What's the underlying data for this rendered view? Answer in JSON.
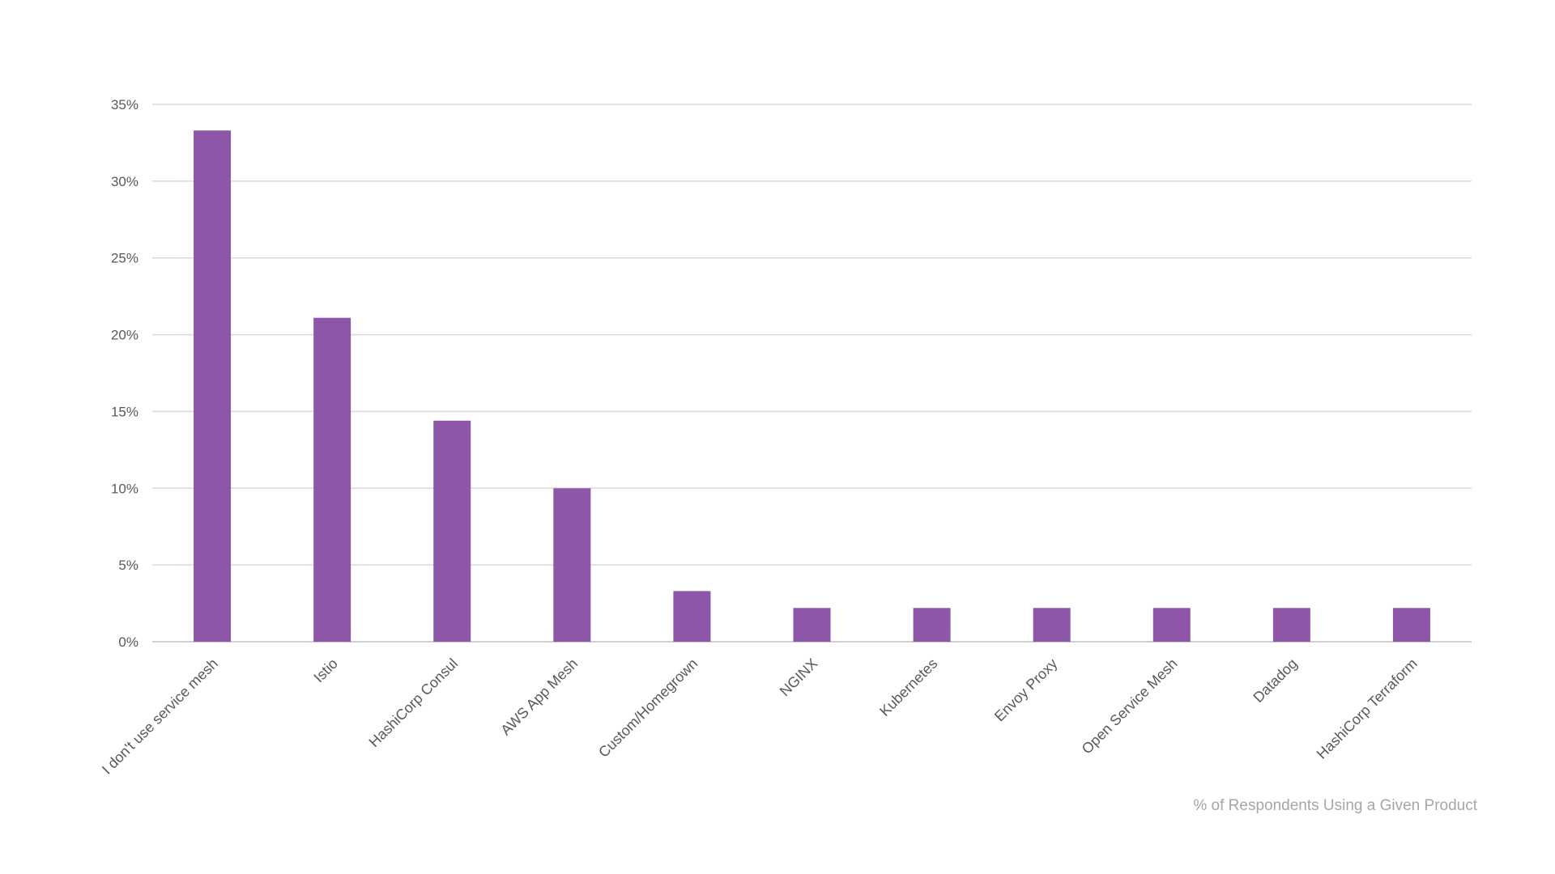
{
  "chart_data": {
    "type": "bar",
    "categories": [
      "I don't use service mesh",
      "Istio",
      "HashiCorp Consul",
      "AWS App Mesh",
      "Custom/Homegrown",
      "NGINX",
      "Kubernetes",
      "Envoy Proxy",
      "Open Service Mesh",
      "Datadog",
      "HashiCorp Terraform"
    ],
    "values": [
      33.3,
      21.1,
      14.4,
      10.0,
      3.3,
      2.2,
      2.2,
      2.2,
      2.2,
      2.2,
      2.2
    ],
    "yticks": [
      "0%",
      "5%",
      "10%",
      "15%",
      "20%",
      "25%",
      "30%",
      "35%"
    ],
    "ylim": [
      0,
      35
    ],
    "title": "",
    "xlabel": "",
    "ylabel": "",
    "caption": "% of Respondents Using a Given Product",
    "bar_color": "#8e56a9",
    "grid": true,
    "legend": "none"
  }
}
